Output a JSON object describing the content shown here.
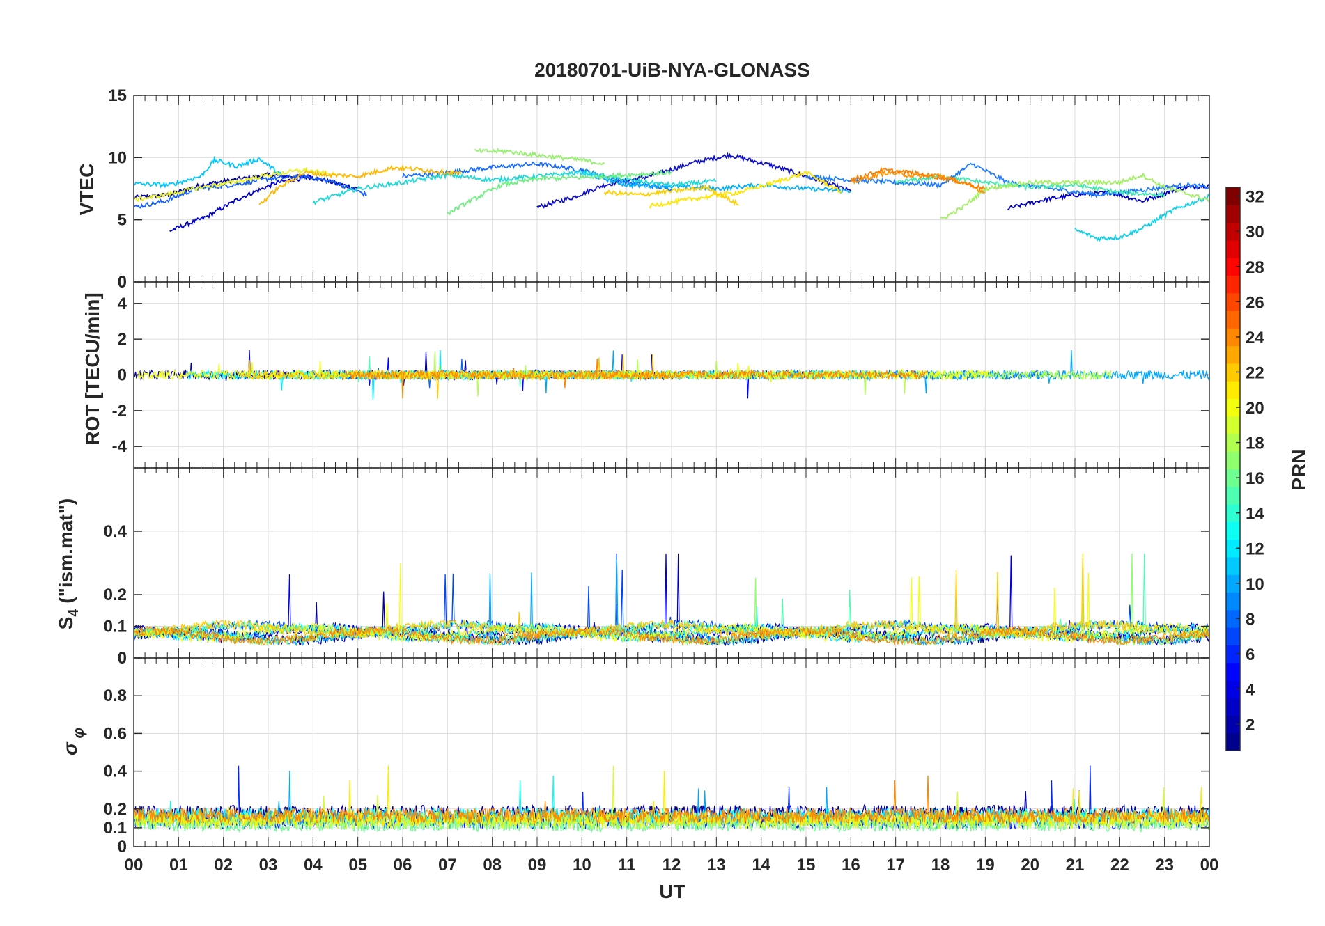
{
  "chart_data": {
    "type": "line",
    "title": "20180701-UiB-NYA-GLONASS",
    "x_tick_labels": [
      "00",
      "01",
      "02",
      "03",
      "04",
      "05",
      "06",
      "07",
      "08",
      "09",
      "10",
      "11",
      "12",
      "13",
      "14",
      "15",
      "16",
      "17",
      "18",
      "19",
      "20",
      "21",
      "22",
      "23",
      "00"
    ],
    "x_range_hours": [
      0,
      24
    ],
    "xlabel": "UT",
    "grid": true,
    "colorbar": {
      "label": "PRN",
      "range": [
        1,
        32
      ],
      "tick_labels": [
        "2",
        "4",
        "6",
        "8",
        "10",
        "12",
        "14",
        "16",
        "18",
        "20",
        "22",
        "24",
        "26",
        "28",
        "30",
        "32"
      ],
      "placement": "right",
      "colormap": [
        "#00008f",
        "#0000ff",
        "#0080ff",
        "#00ffff",
        "#80ff80",
        "#ffff00",
        "#ff8000",
        "#ff0000",
        "#800000"
      ]
    },
    "panels": [
      {
        "id": "vtec",
        "ylabel": "VTEC",
        "ylim": [
          0,
          15
        ],
        "ytick_labels": [
          "0",
          "5",
          "10",
          "15"
        ],
        "series": [
          {
            "prn": 2,
            "color": "#0000a8",
            "points": [
              [
                0.0,
                6.8
              ],
              [
                0.8,
                7.0
              ],
              [
                1.5,
                7.8
              ],
              [
                2.2,
                8.2
              ],
              [
                3.0,
                8.6
              ],
              [
                4.0,
                8.4
              ],
              [
                5.0,
                7.5
              ]
            ]
          },
          {
            "prn": 3,
            "color": "#0000d0",
            "points": [
              [
                0.8,
                4.1
              ],
              [
                1.6,
                5.2
              ],
              [
                2.4,
                6.8
              ],
              [
                3.2,
                8.0
              ],
              [
                4.0,
                8.5
              ]
            ]
          },
          {
            "prn": 4,
            "color": "#1010c8",
            "points": [
              [
                9.0,
                6.0
              ],
              [
                9.8,
                6.8
              ],
              [
                10.5,
                7.8
              ],
              [
                11.5,
                8.5
              ],
              [
                12.5,
                9.6
              ],
              [
                13.3,
                10.2
              ],
              [
                14.2,
                9.4
              ],
              [
                15.0,
                8.5
              ],
              [
                16.0,
                7.3
              ]
            ]
          },
          {
            "prn": 5,
            "color": "#0000c0",
            "points": [
              [
                19.5,
                5.9
              ],
              [
                20.3,
                6.6
              ],
              [
                21.0,
                7.0
              ],
              [
                21.8,
                7.2
              ],
              [
                22.5,
                6.5
              ],
              [
                23.3,
                7.5
              ],
              [
                24.0,
                7.8
              ]
            ]
          },
          {
            "prn": 7,
            "color": "#1560ff",
            "points": [
              [
                0.0,
                6.0
              ],
              [
                0.7,
                6.5
              ],
              [
                1.4,
                7.5
              ],
              [
                2.2,
                7.8
              ],
              [
                3.0,
                8.3
              ],
              [
                3.8,
                8.5
              ],
              [
                4.5,
                8.0
              ],
              [
                5.2,
                7.0
              ]
            ]
          },
          {
            "prn": 8,
            "color": "#1a6cff",
            "points": [
              [
                6.0,
                8.5
              ],
              [
                7.0,
                8.8
              ],
              [
                8.0,
                9.2
              ],
              [
                9.0,
                9.5
              ],
              [
                10.0,
                9.0
              ],
              [
                11.0,
                8.0
              ],
              [
                12.0,
                7.5
              ]
            ]
          },
          {
            "prn": 9,
            "color": "#1e7bff",
            "points": [
              [
                15.0,
                8.5
              ],
              [
                16.0,
                8.2
              ],
              [
                17.0,
                8.0
              ],
              [
                18.0,
                7.8
              ],
              [
                18.7,
                9.5
              ],
              [
                19.5,
                8.0
              ],
              [
                20.5,
                7.5
              ],
              [
                21.5,
                7.0
              ],
              [
                22.5,
                7.4
              ],
              [
                23.5,
                7.8
              ],
              [
                24.0,
                7.6
              ]
            ]
          },
          {
            "prn": 10,
            "color": "#00b0ff",
            "points": [
              [
                10.0,
                8.8
              ],
              [
                11.0,
                7.8
              ],
              [
                12.0,
                7.7
              ],
              [
                13.0,
                7.5
              ],
              [
                14.0,
                7.8
              ],
              [
                15.0,
                7.5
              ],
              [
                16.0,
                7.3
              ]
            ]
          },
          {
            "prn": 11,
            "color": "#00c8ff",
            "points": [
              [
                0.0,
                7.9
              ],
              [
                0.8,
                7.8
              ],
              [
                1.5,
                8.5
              ],
              [
                1.8,
                9.8
              ],
              [
                2.3,
                9.3
              ],
              [
                2.8,
                9.9
              ],
              [
                3.3,
                8.6
              ]
            ]
          },
          {
            "prn": 12,
            "color": "#10d0e8",
            "points": [
              [
                21.0,
                4.2
              ],
              [
                21.5,
                3.5
              ],
              [
                22.0,
                3.6
              ],
              [
                22.5,
                4.3
              ],
              [
                23.2,
                5.8
              ],
              [
                24.0,
                6.9
              ]
            ]
          },
          {
            "prn": 13,
            "color": "#20d8d8",
            "points": [
              [
                4.0,
                6.4
              ],
              [
                5.0,
                7.5
              ],
              [
                6.0,
                8.0
              ],
              [
                7.0,
                8.6
              ],
              [
                8.0,
                8.2
              ],
              [
                9.0,
                8.5
              ],
              [
                10.0,
                8.8
              ],
              [
                11.0,
                8.2
              ],
              [
                12.0,
                7.8
              ],
              [
                13.0,
                8.1
              ]
            ]
          },
          {
            "prn": 14,
            "color": "#40e8b0",
            "points": [
              [
                17.0,
                8.0
              ],
              [
                18.0,
                8.5
              ],
              [
                19.0,
                8.0
              ],
              [
                20.0,
                7.6
              ],
              [
                21.0,
                7.8
              ],
              [
                22.0,
                7.2
              ],
              [
                23.0,
                7.0
              ]
            ]
          },
          {
            "prn": 15,
            "color": "#70f080",
            "points": [
              [
                7.0,
                5.5
              ],
              [
                7.5,
                6.5
              ],
              [
                8.2,
                7.8
              ],
              [
                9.0,
                8.3
              ],
              [
                10.0,
                8.4
              ],
              [
                11.0,
                8.6
              ],
              [
                12.0,
                8.8
              ]
            ]
          },
          {
            "prn": 16,
            "color": "#98f070",
            "points": [
              [
                7.6,
                10.5
              ],
              [
                8.3,
                10.5
              ],
              [
                9.0,
                10.2
              ],
              [
                10.0,
                9.8
              ],
              [
                10.5,
                9.5
              ]
            ]
          },
          {
            "prn": 17,
            "color": "#a0f060",
            "points": [
              [
                18.0,
                5.0
              ],
              [
                18.5,
                6.0
              ],
              [
                19.0,
                7.5
              ],
              [
                20.0,
                8.0
              ],
              [
                21.0,
                8.0
              ],
              [
                22.0,
                8.0
              ],
              [
                22.5,
                8.6
              ],
              [
                23.0,
                7.6
              ],
              [
                24.0,
                6.6
              ]
            ]
          },
          {
            "prn": 19,
            "color": "#e8f020",
            "points": [
              [
                0.0,
                6.6
              ],
              [
                0.7,
                7.0
              ],
              [
                1.5,
                7.6
              ],
              [
                2.2,
                8.0
              ],
              [
                3.0,
                8.6
              ],
              [
                3.8,
                9.0
              ],
              [
                4.5,
                8.6
              ]
            ]
          },
          {
            "prn": 20,
            "color": "#ffe600",
            "points": [
              [
                11.5,
                6.1
              ],
              [
                12.5,
                6.7
              ],
              [
                13.5,
                7.2
              ],
              [
                14.3,
                8.0
              ],
              [
                15.0,
                8.8
              ],
              [
                15.8,
                7.2
              ]
            ]
          },
          {
            "prn": 21,
            "color": "#ffd000",
            "points": [
              [
                10.5,
                7.2
              ],
              [
                11.3,
                7.0
              ],
              [
                12.0,
                7.3
              ],
              [
                12.8,
                7.6
              ],
              [
                13.5,
                6.2
              ]
            ]
          },
          {
            "prn": 22,
            "color": "#ffb800",
            "points": [
              [
                2.8,
                6.2
              ],
              [
                3.2,
                7.5
              ],
              [
                3.8,
                8.8
              ],
              [
                4.4,
                8.6
              ],
              [
                5.0,
                8.5
              ],
              [
                5.8,
                9.2
              ],
              [
                6.5,
                9.0
              ],
              [
                7.3,
                8.7
              ]
            ]
          },
          {
            "prn": 23,
            "color": "#ff9400",
            "points": [
              [
                16.0,
                8.0
              ],
              [
                16.8,
                8.8
              ],
              [
                17.5,
                8.5
              ],
              [
                18.0,
                8.6
              ],
              [
                18.6,
                7.8
              ],
              [
                19.0,
                7.2
              ]
            ]
          },
          {
            "prn": 24,
            "color": "#ff7f00",
            "points": [
              [
                16.0,
                8.2
              ],
              [
                16.7,
                9.0
              ],
              [
                17.3,
                8.8
              ],
              [
                18.0,
                8.4
              ],
              [
                18.5,
                8.0
              ],
              [
                19.0,
                7.5
              ]
            ]
          }
        ]
      },
      {
        "id": "rot",
        "ylabel": "ROT [TECU/min]",
        "ylim": [
          -5.2,
          5.2
        ],
        "ytick_labels": [
          "-4",
          "-2",
          "0",
          "2",
          "4"
        ],
        "band_center": 0,
        "band_amplitude": 0.25,
        "spike_max": 1.4
      },
      {
        "id": "s4",
        "ylabel": "S4 (\"ism.mat\")",
        "ylabel_main": "S",
        "ylabel_sub": "4",
        "ylabel_rest": " (\"ism.mat\")",
        "ylim": [
          0,
          0.6
        ],
        "ytick_labels": [
          "0",
          "0.1",
          "0.2",
          "0.4"
        ],
        "baseline": 0.06,
        "spike_max": 0.33
      },
      {
        "id": "sigma_phi",
        "ylabel": "σ φ",
        "ylabel_main": "σ",
        "ylabel_sub": "φ",
        "ylim": [
          0,
          1.0
        ],
        "ytick_labels": [
          "0",
          "0.1",
          "0.2",
          "0.4",
          "0.6",
          "0.8"
        ],
        "baseline": 0.15,
        "spike_max": 0.43
      }
    ]
  }
}
